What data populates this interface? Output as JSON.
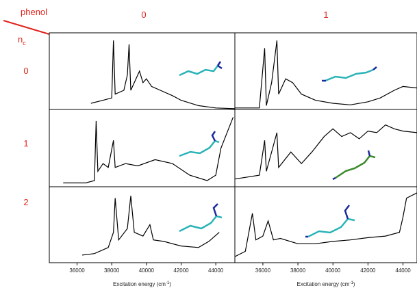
{
  "header": {
    "corner_top": "phenol",
    "corner_bottom": "n",
    "corner_sub": "c",
    "columns": [
      "0",
      "1"
    ],
    "rows": [
      "0",
      "1",
      "2"
    ]
  },
  "chart_data": [
    {
      "type": "line",
      "color": "#000000",
      "xlim": [
        34400,
        45100
      ],
      "ylim": [
        0,
        100
      ],
      "x": [
        36800,
        37500,
        38000,
        38100,
        38200,
        38700,
        38900,
        39000,
        39100,
        39400,
        39600,
        39800,
        40000,
        40300,
        40800,
        41500,
        42000,
        43000,
        44000,
        45100
      ],
      "values": [
        8,
        12,
        15,
        90,
        20,
        25,
        45,
        85,
        25,
        40,
        50,
        35,
        40,
        30,
        25,
        18,
        12,
        5,
        2,
        1
      ]
    },
    {
      "type": "line",
      "color": "#000000",
      "xlim": [
        34400,
        44800
      ],
      "ylim": [
        0,
        100
      ],
      "x": [
        34400,
        35800,
        36100,
        36200,
        36500,
        36800,
        36900,
        37300,
        37700,
        38200,
        39000,
        40000,
        41000,
        42000,
        42700,
        43500,
        44000,
        44800
      ],
      "values": [
        2,
        2,
        80,
        5,
        35,
        90,
        20,
        40,
        35,
        20,
        12,
        8,
        6,
        10,
        15,
        25,
        30,
        28
      ]
    },
    {
      "type": "line",
      "color": "#000000",
      "xlim": [
        34400,
        45100
      ],
      "ylim": [
        0,
        100
      ],
      "x": [
        35200,
        36500,
        37000,
        37100,
        37200,
        37500,
        37800,
        38100,
        38200,
        38800,
        39500,
        40500,
        41500,
        42500,
        43500,
        44000,
        44300,
        45000
      ],
      "values": [
        5,
        5,
        8,
        85,
        20,
        30,
        25,
        60,
        25,
        30,
        27,
        35,
        30,
        15,
        8,
        15,
        50,
        90
      ]
    },
    {
      "type": "line",
      "color": "#000000",
      "xlim": [
        34400,
        44800
      ],
      "ylim": [
        0,
        100
      ],
      "x": [
        34400,
        35800,
        36100,
        36200,
        36800,
        36900,
        37600,
        38200,
        38800,
        39500,
        40000,
        40500,
        41000,
        41500,
        42000,
        42500,
        43000,
        43500,
        44000,
        44800
      ],
      "values": [
        10,
        15,
        60,
        20,
        70,
        25,
        45,
        30,
        45,
        65,
        75,
        65,
        70,
        62,
        72,
        70,
        80,
        75,
        72,
        70
      ]
    },
    {
      "type": "line",
      "color": "#000000",
      "xlim": [
        34400,
        45100
      ],
      "ylim": [
        0,
        100
      ],
      "x": [
        36300,
        37000,
        37800,
        38100,
        38200,
        38400,
        38900,
        39100,
        39300,
        39800,
        40200,
        40400,
        41000,
        42000,
        43000,
        43600,
        44200
      ],
      "values": [
        10,
        12,
        20,
        40,
        85,
        30,
        45,
        88,
        40,
        35,
        50,
        30,
        28,
        22,
        20,
        28,
        40
      ],
      "xticks": [
        36000,
        38000,
        40000,
        42000,
        44000
      ],
      "x_label": "Excitation energy (cm",
      "x_label_sup": "-1",
      "x_label_end": ")"
    },
    {
      "type": "line",
      "color": "#000000",
      "xlim": [
        34400,
        44800
      ],
      "ylim": [
        0,
        100
      ],
      "x": [
        34400,
        35000,
        35400,
        35600,
        36000,
        36300,
        36600,
        37000,
        38000,
        39000,
        40000,
        41000,
        42000,
        43000,
        43800,
        44000,
        44200,
        44800
      ],
      "values": [
        8,
        15,
        65,
        30,
        35,
        55,
        30,
        32,
        25,
        25,
        28,
        30,
        33,
        35,
        40,
        60,
        85,
        92
      ],
      "xticks": [
        36000,
        38000,
        40000,
        42000,
        44000
      ],
      "x_label": "Excitation energy (cm",
      "x_label_sup": "-1",
      "x_label_end": ")"
    }
  ]
}
